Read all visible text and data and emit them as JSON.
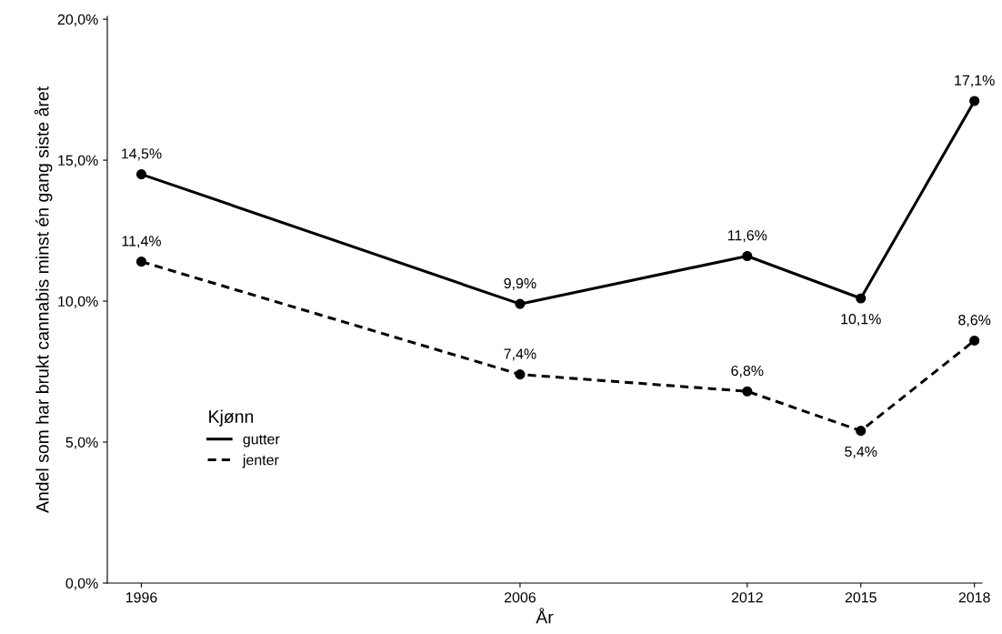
{
  "chart_data": {
    "type": "line",
    "xlabel": "År",
    "ylabel": "Andel som har brukt cannabis minst én gang siste året",
    "legend_title": "Kjønn",
    "x": [
      1996,
      2006,
      2012,
      2015,
      2018
    ],
    "series": [
      {
        "name": "gutter",
        "color": "#000000",
        "line_style": "solid",
        "values": [
          14.5,
          9.9,
          11.6,
          10.1,
          17.1
        ],
        "value_labels": [
          "14,5%",
          "9,9%",
          "11,6%",
          "10,1%",
          "17,1%"
        ]
      },
      {
        "name": "jenter",
        "color": "#000000",
        "line_style": "dashed",
        "values": [
          11.4,
          7.4,
          6.8,
          5.4,
          8.6
        ],
        "value_labels": [
          "11,4%",
          "7,4%",
          "6,8%",
          "5,4%",
          "8,6%"
        ]
      }
    ],
    "xlim": [
      1995.1,
      2018.2
    ],
    "xticks": [
      1996,
      2006,
      2012,
      2015,
      2018
    ],
    "ylim": [
      0,
      20.1
    ],
    "yticks": [
      {
        "value": 0,
        "label": "0,0%"
      },
      {
        "value": 5,
        "label": "5,0%"
      },
      {
        "value": 10,
        "label": "10,0%"
      },
      {
        "value": 15,
        "label": "15,0%"
      },
      {
        "value": 20,
        "label": "20,0%"
      }
    ],
    "marker": "circle",
    "grid": false,
    "legend": "bottom left"
  }
}
